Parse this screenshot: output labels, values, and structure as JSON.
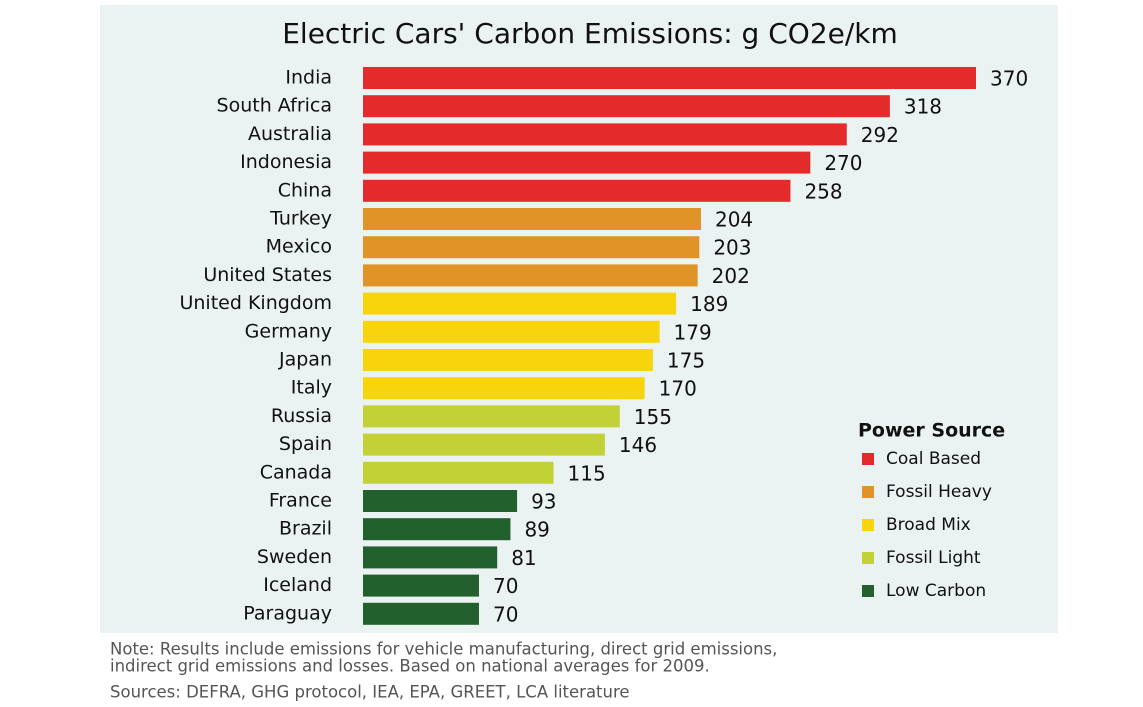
{
  "chart_data": {
    "type": "bar",
    "orientation": "horizontal",
    "title": "Electric Cars' Carbon Emissions: g CO2e/km",
    "categories": [
      "India",
      "South Africa",
      "Australia",
      "Indonesia",
      "China",
      "Turkey",
      "Mexico",
      "United States",
      "United Kingdom",
      "Germany",
      "Japan",
      "Italy",
      "Russia",
      "Spain",
      "Canada",
      "France",
      "Brazil",
      "Sweden",
      "Iceland",
      "Paraguay"
    ],
    "legend_title": "Power Source",
    "series": [
      {
        "name": "Coal Based",
        "color": "#e32b2b",
        "values": [
          370,
          318,
          292,
          270,
          258,
          null,
          null,
          null,
          null,
          null,
          null,
          null,
          null,
          null,
          null,
          null,
          null,
          null,
          null,
          null
        ]
      },
      {
        "name": "Fossil Heavy",
        "color": "#e09428",
        "values": [
          null,
          null,
          null,
          null,
          null,
          204,
          203,
          202,
          null,
          null,
          null,
          null,
          null,
          null,
          null,
          null,
          null,
          null,
          null,
          null
        ]
      },
      {
        "name": "Broad Mix",
        "color": "#f8d40c",
        "values": [
          null,
          null,
          null,
          null,
          null,
          null,
          null,
          null,
          189,
          179,
          175,
          170,
          null,
          null,
          null,
          null,
          null,
          null,
          null,
          null
        ]
      },
      {
        "name": "Fossil Light",
        "color": "#c2d236",
        "values": [
          null,
          null,
          null,
          null,
          null,
          null,
          null,
          null,
          null,
          null,
          null,
          null,
          155,
          146,
          115,
          null,
          null,
          null,
          null,
          null
        ]
      },
      {
        "name": "Low Carbon",
        "color": "#22602e",
        "values": [
          null,
          null,
          null,
          null,
          null,
          null,
          null,
          null,
          null,
          null,
          null,
          null,
          null,
          null,
          null,
          93,
          89,
          81,
          70,
          70
        ]
      }
    ],
    "note": [
      "Note:  Results include emissions for vehicle manufacturing, direct grid emissions,",
      "indirect grid emissions and losses.  Based on national averages for 2009."
    ],
    "sources": "Sources: DEFRA, GHG protocol, IEA, EPA, GREET, LCA literature"
  }
}
